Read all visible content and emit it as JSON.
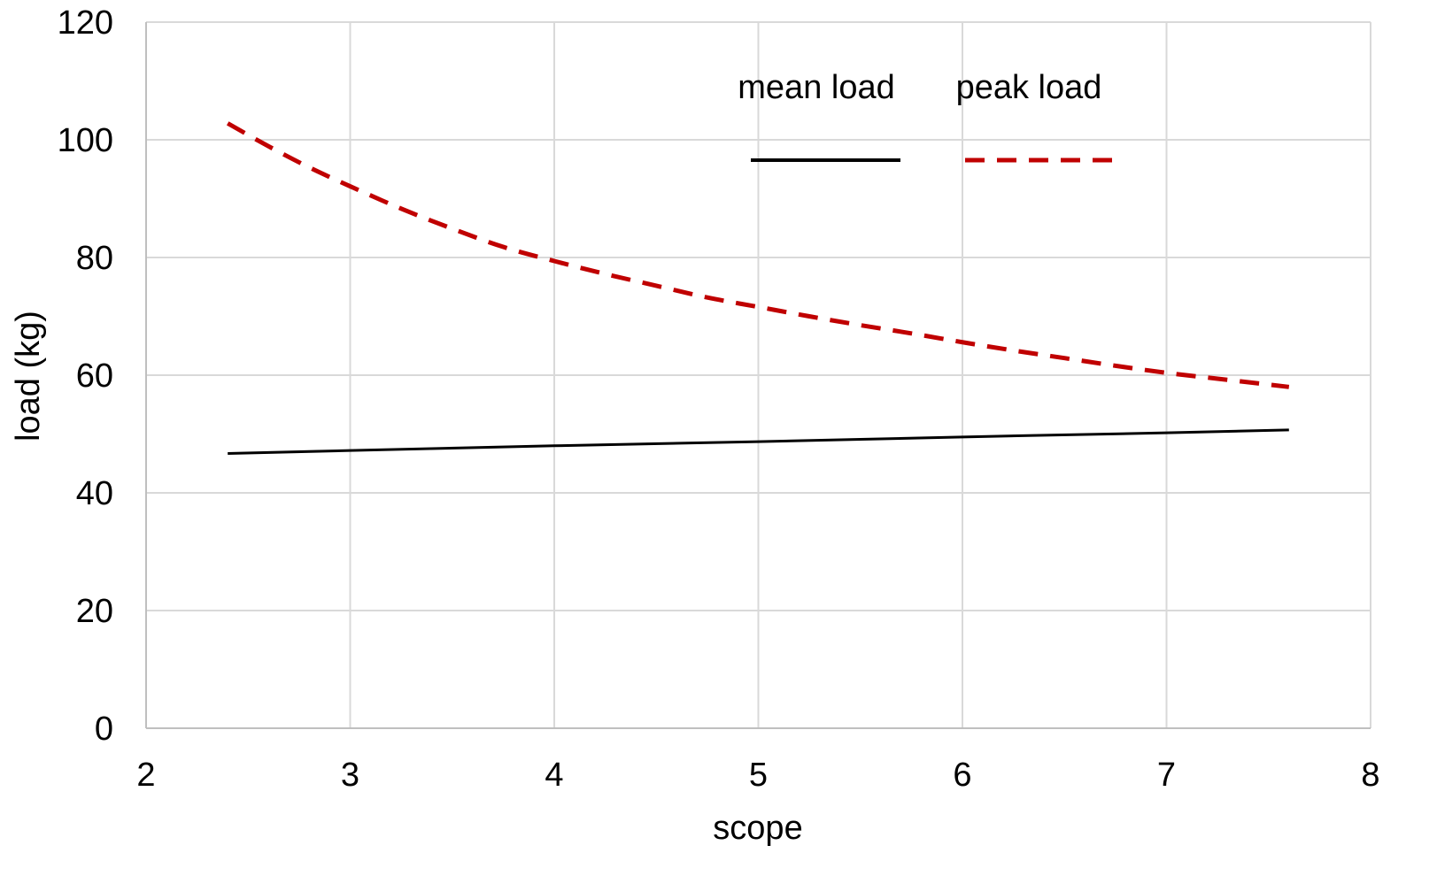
{
  "chart_data": {
    "type": "line",
    "title": "",
    "xlabel": "scope",
    "ylabel": "load (kg)",
    "xlim": [
      2,
      8
    ],
    "ylim": [
      0,
      120
    ],
    "x_ticks": [
      2,
      3,
      4,
      5,
      6,
      7,
      8
    ],
    "y_ticks": [
      0,
      20,
      40,
      60,
      80,
      100,
      120
    ],
    "grid": true,
    "legend": "top-center",
    "series": [
      {
        "name": "mean load",
        "color": "#000000",
        "style": "solid",
        "x": [
          2.4,
          3.0,
          4.0,
          5.0,
          6.0,
          7.0,
          7.6
        ],
        "y": [
          46.7,
          47.2,
          48.0,
          48.7,
          49.5,
          50.2,
          50.7
        ]
      },
      {
        "name": "peak load",
        "color": "#c00000",
        "style": "dashed",
        "x": [
          2.4,
          2.6,
          2.8,
          3.0,
          3.25,
          3.5,
          3.75,
          4.0,
          4.25,
          4.5,
          4.75,
          5.0,
          5.25,
          5.5,
          5.75,
          6.0,
          6.25,
          6.5,
          6.75,
          7.0,
          7.25,
          7.5,
          7.6
        ],
        "y": [
          102.8,
          98.9,
          95.3,
          92.1,
          88.3,
          84.9,
          81.8,
          79.4,
          77.2,
          75.2,
          73.2,
          71.6,
          70.0,
          68.5,
          67.1,
          65.6,
          64.2,
          62.9,
          61.6,
          60.4,
          59.4,
          58.4,
          58.0
        ]
      }
    ]
  }
}
